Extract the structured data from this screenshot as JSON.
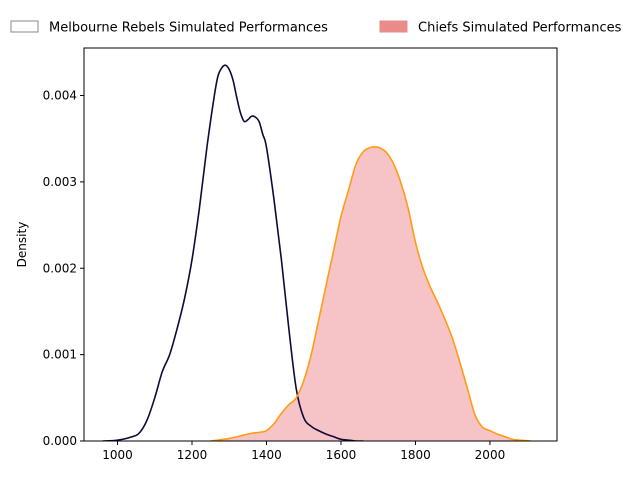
{
  "chart_data": {
    "type": "area",
    "title": "",
    "xlabel": "",
    "ylabel": "Density",
    "xlim": [
      910,
      2180
    ],
    "ylim": [
      0,
      0.00455
    ],
    "xticks": [
      1000,
      1200,
      1400,
      1600,
      1800,
      2000
    ],
    "yticks": [
      0.0,
      0.001,
      0.002,
      0.003,
      0.004
    ],
    "ytick_labels": [
      "0.000",
      "0.001",
      "0.002",
      "0.003",
      "0.004"
    ],
    "grid": false,
    "legend_position": "top",
    "series": [
      {
        "name": "Melbourne Rebels Simulated Performances",
        "filled": false,
        "line_color": "#0d0a3a",
        "fill_color": "none",
        "legend_swatch_fill": "#ffffff",
        "legend_swatch_edge": "#888888",
        "x": [
          960,
          1000,
          1040,
          1060,
          1080,
          1100,
          1120,
          1140,
          1160,
          1180,
          1200,
          1220,
          1240,
          1260,
          1270,
          1280,
          1290,
          1300,
          1310,
          1320,
          1330,
          1340,
          1350,
          1360,
          1370,
          1380,
          1390,
          1400,
          1420,
          1440,
          1460,
          1480,
          1500,
          1520,
          1540,
          1560,
          1580,
          1600,
          1620,
          1640,
          1660
        ],
        "y": [
          0.0,
          1e-05,
          5e-05,
          0.0001,
          0.00025,
          0.0005,
          0.0008,
          0.001,
          0.0013,
          0.00165,
          0.0021,
          0.0027,
          0.0034,
          0.004,
          0.00423,
          0.00432,
          0.00435,
          0.0043,
          0.00418,
          0.00398,
          0.0038,
          0.0037,
          0.00372,
          0.00376,
          0.00375,
          0.0037,
          0.00355,
          0.0034,
          0.0028,
          0.0021,
          0.0013,
          0.0006,
          0.00027,
          0.00017,
          0.00012,
          8e-05,
          5e-05,
          2e-05,
          1e-05,
          0.0,
          0.0
        ]
      },
      {
        "name": "Chiefs Simulated Performances",
        "filled": true,
        "line_color": "#ff9c14",
        "fill_color": "#ed8a8f",
        "fill_opacity": 0.5,
        "legend_swatch_fill": "#e98b88",
        "legend_swatch_edge": "#e98b88",
        "x": [
          1250,
          1300,
          1340,
          1360,
          1380,
          1400,
          1420,
          1440,
          1460,
          1480,
          1500,
          1520,
          1540,
          1560,
          1580,
          1600,
          1620,
          1640,
          1660,
          1680,
          1700,
          1720,
          1740,
          1760,
          1780,
          1800,
          1820,
          1840,
          1860,
          1880,
          1900,
          1920,
          1940,
          1960,
          1980,
          2000,
          2020,
          2040,
          2060,
          2080,
          2110
        ],
        "y": [
          0.0,
          3e-05,
          7e-05,
          9e-05,
          0.0001,
          0.00012,
          0.0002,
          0.00032,
          0.00042,
          0.0005,
          0.0007,
          0.001,
          0.0014,
          0.0018,
          0.0022,
          0.0026,
          0.0029,
          0.0032,
          0.00335,
          0.0034,
          0.0034,
          0.00335,
          0.00322,
          0.003,
          0.0027,
          0.0023,
          0.002,
          0.00178,
          0.0016,
          0.0014,
          0.00118,
          0.0009,
          0.0006,
          0.0003,
          0.00016,
          0.00012,
          8e-05,
          5e-05,
          2e-05,
          1e-05,
          0.0
        ]
      }
    ]
  }
}
